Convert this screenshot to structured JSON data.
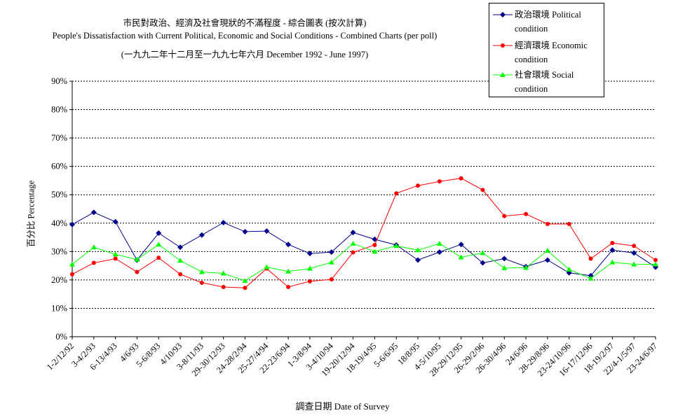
{
  "chart_data": {
    "type": "line",
    "title_lines": [
      "市民對政治、經濟及社會現狀的不滿程度 - 綜合圖表 (按次計算)",
      "People's Dissatisfaction with Current Political, Economic and Social Conditions - Combined Charts  (per poll)",
      "(一九九二年十二月至一九九七年六月 December 1992 - June 1997)"
    ],
    "xlabel": "調查日期 Date of Survey",
    "ylabel": "百分比 Percentage",
    "ylim": [
      0,
      90
    ],
    "yticks": [
      0,
      10,
      20,
      30,
      40,
      50,
      60,
      70,
      80,
      90
    ],
    "ytick_labels": [
      "0%",
      "10%",
      "20%",
      "30%",
      "40%",
      "50%",
      "60%",
      "70%",
      "80%",
      "90%"
    ],
    "grid": "horizontal dotted",
    "legend_position": "top-right",
    "categories": [
      "1-2/12/92",
      "3-4/2/93",
      "6-13/4/93",
      "4/6/93",
      "5-6/8/93",
      "4/10/93",
      "3-8/11/93",
      "29-30/12/93",
      "24-28/2/94",
      "25-27/4/94",
      "22-23/6/94",
      "1-3/8/94",
      "3-4/10/94",
      "19-20/12/94",
      "18-19/4/95",
      "5-6/6/95",
      "18/8/95",
      "4-5/10/95",
      "28-29/12/95",
      "26-29/2/96",
      "26-30/4/96",
      "24/6/96",
      "28-29/8/96",
      "23-24/10/96",
      "16-17/12/96",
      "18-19/2/97",
      "22/4-1/5/97",
      "23-24/6/97"
    ],
    "series": [
      {
        "name": "政治環境 Political condition",
        "color": "#00008B",
        "marker": "diamond",
        "values": [
          39.5,
          43.8,
          40.5,
          27.0,
          36.5,
          31.5,
          35.8,
          40.2,
          37.0,
          37.2,
          32.5,
          29.3,
          29.8,
          36.7,
          34.3,
          32.3,
          27.0,
          29.8,
          32.5,
          26.0,
          27.5,
          24.7,
          27.0,
          22.5,
          21.5,
          30.5,
          29.5,
          24.5
        ]
      },
      {
        "name": "經濟環境 Economic condition",
        "color": "#FF0000",
        "marker": "circle",
        "values": [
          22.0,
          26.0,
          27.5,
          22.8,
          27.8,
          22.0,
          19.0,
          17.5,
          17.2,
          24.0,
          17.5,
          19.5,
          20.2,
          29.7,
          32.3,
          50.5,
          53.2,
          54.7,
          55.8,
          51.7,
          42.5,
          43.2,
          39.7,
          39.7,
          27.5,
          33.0,
          32.0,
          27.0
        ]
      },
      {
        "name": "社會環境 Social condition",
        "color": "#00FF00",
        "marker": "triangle",
        "values": [
          25.5,
          31.5,
          29.0,
          27.2,
          32.5,
          26.8,
          22.8,
          22.3,
          19.7,
          24.5,
          23.0,
          24.0,
          26.2,
          32.8,
          30.0,
          32.0,
          30.5,
          32.8,
          28.0,
          29.5,
          24.2,
          24.3,
          30.3,
          23.7,
          20.5,
          26.2,
          25.5,
          25.5
        ]
      }
    ]
  }
}
